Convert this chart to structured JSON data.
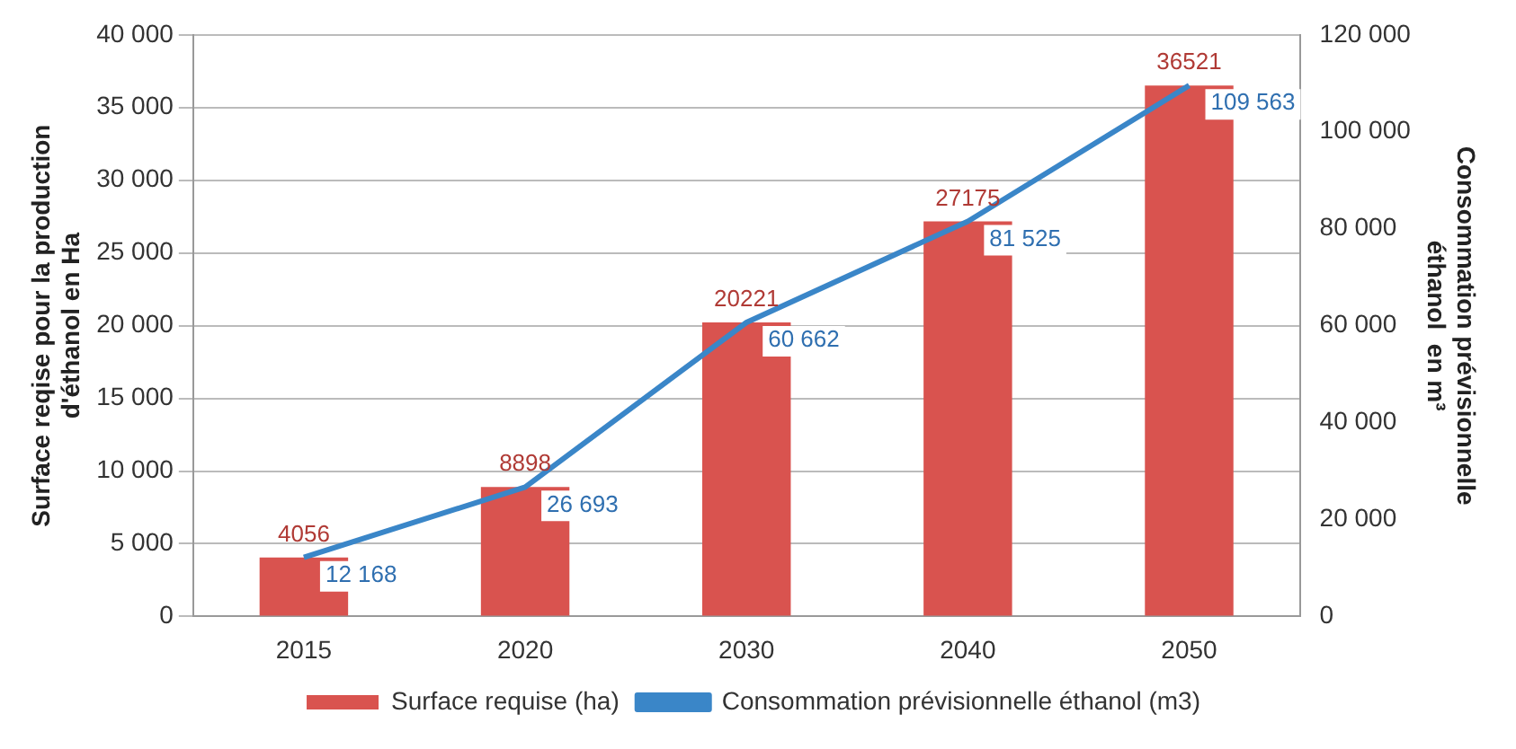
{
  "chart_data": {
    "type": "bar",
    "categories": [
      "2015",
      "2020",
      "2030",
      "2040",
      "2050"
    ],
    "ylabel": "Surface reqise pour la production\nd'éthanol en Ha",
    "y2label": "Consommation prévisionnelle\néthanol  en m³",
    "series": [
      {
        "name": "Surface requise (ha)",
        "color": "#d9534f",
        "values": [
          4056,
          8898,
          20221,
          27175,
          36521
        ],
        "value_labels": [
          "4056",
          "8898",
          "20221",
          "27175",
          "36521"
        ]
      },
      {
        "name": "Consommation prévisionnelle éthanol (m3)",
        "type": "line",
        "axis": "y2",
        "color": "#3a86c8",
        "values": [
          12168,
          26693,
          60662,
          81525,
          109563
        ],
        "value_labels": [
          "12 168",
          "26 693",
          "60 662",
          "81 525",
          "109 563"
        ]
      }
    ],
    "ylim": [
      0,
      40000
    ],
    "yticks": [
      {
        "value": 0,
        "label": "0"
      },
      {
        "value": 5000,
        "label": "5 000"
      },
      {
        "value": 10000,
        "label": "10 000"
      },
      {
        "value": 15000,
        "label": "15 000"
      },
      {
        "value": 20000,
        "label": "20 000"
      },
      {
        "value": 25000,
        "label": "25 000"
      },
      {
        "value": 30000,
        "label": "30 000"
      },
      {
        "value": 35000,
        "label": "35 000"
      },
      {
        "value": 40000,
        "label": "40 000"
      }
    ],
    "y2lim": [
      0,
      120000
    ],
    "y2ticks": [
      {
        "value": 0,
        "label": "0"
      },
      {
        "value": 20000,
        "label": "20 000"
      },
      {
        "value": 40000,
        "label": "40 000"
      },
      {
        "value": 60000,
        "label": "60 000"
      },
      {
        "value": 80000,
        "label": "80 000"
      },
      {
        "value": 100000,
        "label": "100 000"
      },
      {
        "value": 120000,
        "label": "120 000"
      }
    ],
    "grid": "y",
    "legend": "bottom",
    "marker": "none",
    "line_style": "solid"
  }
}
